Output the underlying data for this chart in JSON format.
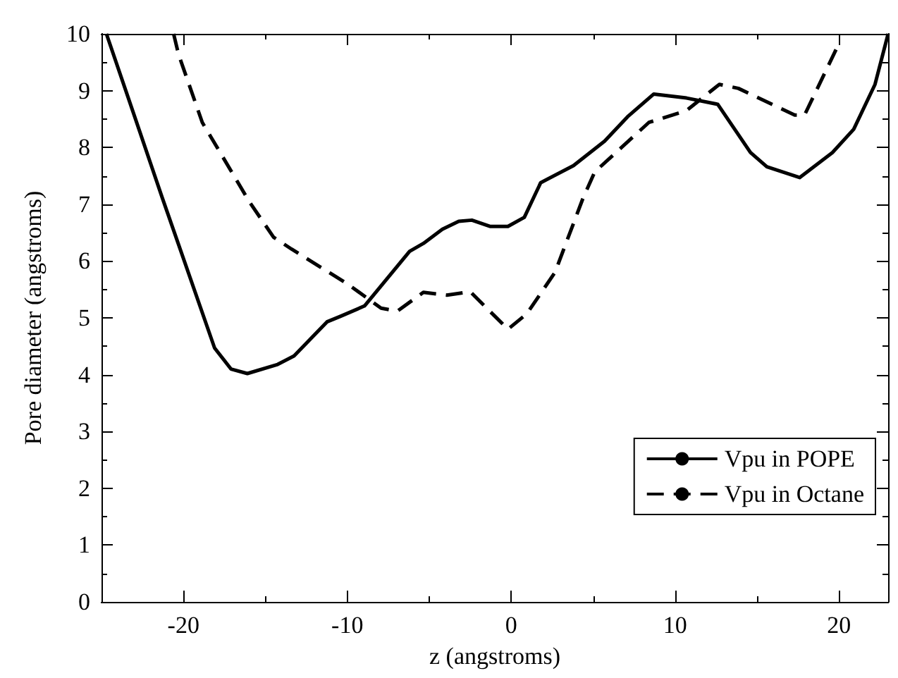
{
  "chart_data": {
    "type": "line",
    "xlabel": "z (angstroms)",
    "ylabel": "Pore diameter (angstroms)",
    "xlim": [
      -25,
      23
    ],
    "ylim": [
      0,
      10
    ],
    "xticks": [
      -20,
      {
        "value": -15,
        "label": null
      },
      -10,
      {
        "value": -5,
        "label": null
      },
      0,
      {
        "value": 5,
        "label": null
      },
      10,
      {
        "value": 15,
        "label": null
      },
      20
    ],
    "yticks": [
      0,
      {
        "value": 0.5,
        "label": null
      },
      1,
      {
        "value": 1.5,
        "label": null
      },
      2,
      {
        "value": 2.5,
        "label": null
      },
      3,
      {
        "value": 3.5,
        "label": null
      },
      4,
      {
        "value": 4.5,
        "label": null
      },
      5,
      {
        "value": 5.5,
        "label": null
      },
      6,
      {
        "value": 6.5,
        "label": null
      },
      7,
      {
        "value": 7.5,
        "label": null
      },
      8,
      {
        "value": 8.5,
        "label": null
      },
      9,
      {
        "value": 9.5,
        "label": null
      },
      10
    ],
    "grid": false,
    "legend": "bottom right",
    "marker": "none",
    "series": [
      {
        "name": "Vpu in POPE",
        "color": "#000000",
        "line_style": "solid",
        "x": [
          -24.7,
          -23.15,
          -21.3,
          -18.1,
          -17.1,
          -16.1,
          -14.25,
          -13.25,
          -11.24,
          -10.4,
          -8.95,
          -6.2,
          -5.36,
          -4.2,
          -3.2,
          -2.4,
          -1.3,
          -0.2,
          0.8,
          1.8,
          3.8,
          5.7,
          7.1,
          8.7,
          10.7,
          12.6,
          14.6,
          15.6,
          17.6,
          19.6,
          20.9,
          22.2,
          23
        ],
        "values": [
          10,
          8.69,
          7.12,
          4.47,
          4.1,
          4.02,
          4.18,
          4.33,
          4.93,
          5.03,
          5.21,
          6.17,
          6.31,
          6.56,
          6.7,
          6.72,
          6.61,
          6.61,
          6.77,
          7.38,
          7.68,
          8.11,
          8.54,
          8.94,
          8.87,
          8.76,
          7.91,
          7.66,
          7.47,
          7.91,
          8.32,
          9.11,
          10
        ]
      },
      {
        "name": "Vpu in Octane",
        "color": "#000000",
        "line_style": "dashed",
        "x": [
          -20.6,
          -20.3,
          -18.85,
          -15.97,
          -14.5,
          -13.4,
          -9.95,
          -7.94,
          -6.94,
          -5.36,
          -3.92,
          -2.5,
          -0.2,
          0.95,
          2.67,
          4.4,
          5.1,
          8.4,
          10.7,
          12.7,
          13.86,
          17.3,
          17.9,
          19.9
        ],
        "values": [
          10,
          9.64,
          8.44,
          7.04,
          6.42,
          6.21,
          5.59,
          5.17,
          5.12,
          5.45,
          5.4,
          5.46,
          4.8,
          5.07,
          5.8,
          7.12,
          7.57,
          8.44,
          8.65,
          9.11,
          9.04,
          8.57,
          8.57,
          9.77
        ]
      }
    ]
  }
}
